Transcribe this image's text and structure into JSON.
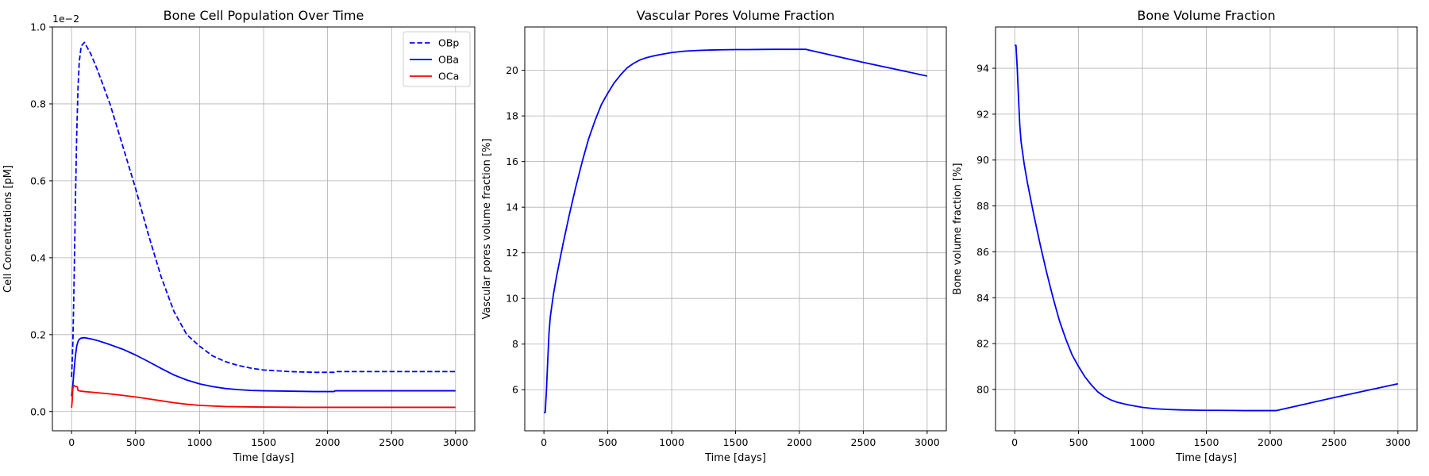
{
  "chart_data": [
    {
      "type": "line",
      "title": "Bone Cell Population Over Time",
      "xlabel": "Time [days]",
      "ylabel": "Cell Concentrations [pM]",
      "offset_label": "1e−2",
      "xlim": [
        -150,
        3150
      ],
      "ylim": [
        -0.05,
        1.0
      ],
      "xticks": [
        0,
        500,
        1000,
        1500,
        2000,
        2500,
        3000
      ],
      "yticks": [
        0.0,
        0.2,
        0.4,
        0.6,
        0.8,
        1.0
      ],
      "ytick_labels": [
        "0.0",
        "0.2",
        "0.4",
        "0.6",
        "0.8",
        "1.0"
      ],
      "grid": true,
      "legend": "upper right",
      "series": [
        {
          "name": "OBp",
          "color": "#0000ff",
          "style": "dashed",
          "x": [
            0,
            10,
            20,
            30,
            40,
            50,
            60,
            75,
            100,
            150,
            200,
            300,
            400,
            500,
            600,
            700,
            800,
            900,
            1000,
            1100,
            1200,
            1300,
            1400,
            1500,
            1600,
            1700,
            1800,
            1900,
            2000,
            2050,
            2060,
            2500,
            3000
          ],
          "y": [
            0.09,
            0.18,
            0.35,
            0.55,
            0.72,
            0.84,
            0.91,
            0.95,
            0.96,
            0.93,
            0.89,
            0.8,
            0.69,
            0.58,
            0.46,
            0.35,
            0.26,
            0.2,
            0.17,
            0.145,
            0.13,
            0.12,
            0.113,
            0.108,
            0.106,
            0.104,
            0.103,
            0.102,
            0.102,
            0.102,
            0.104,
            0.104,
            0.104
          ]
        },
        {
          "name": "OBa",
          "color": "#0000ff",
          "style": "solid",
          "x": [
            0,
            10,
            20,
            30,
            40,
            50,
            60,
            75,
            100,
            150,
            200,
            300,
            400,
            500,
            600,
            700,
            800,
            900,
            1000,
            1100,
            1200,
            1300,
            1400,
            1500,
            1600,
            1700,
            1800,
            1900,
            2000,
            2050,
            2060,
            2500,
            3000
          ],
          "y": [
            0.04,
            0.07,
            0.11,
            0.145,
            0.17,
            0.182,
            0.188,
            0.191,
            0.192,
            0.189,
            0.185,
            0.174,
            0.162,
            0.147,
            0.13,
            0.112,
            0.095,
            0.082,
            0.072,
            0.065,
            0.06,
            0.057,
            0.055,
            0.054,
            0.0535,
            0.053,
            0.0525,
            0.052,
            0.052,
            0.052,
            0.054,
            0.054,
            0.054
          ]
        },
        {
          "name": "OCa",
          "color": "#ff0000",
          "style": "solid",
          "x": [
            0,
            5,
            10,
            15,
            20,
            25,
            30,
            35,
            40,
            45,
            50,
            60,
            75,
            100,
            200,
            300,
            400,
            500,
            600,
            700,
            800,
            900,
            1000,
            1200,
            1400,
            1600,
            1800,
            2000,
            2500,
            3000
          ],
          "y": [
            0.01,
            0.03,
            0.06,
            0.068,
            0.068,
            0.066,
            0.065,
            0.065,
            0.065,
            0.064,
            0.055,
            0.054,
            0.053,
            0.052,
            0.049,
            0.046,
            0.042,
            0.038,
            0.033,
            0.028,
            0.023,
            0.019,
            0.016,
            0.013,
            0.012,
            0.0115,
            0.011,
            0.011,
            0.011,
            0.011
          ]
        }
      ]
    },
    {
      "type": "line",
      "title": "Vascular Pores Volume Fraction",
      "xlabel": "Time [days]",
      "ylabel": "Vascular pores volume fraction [%]",
      "xlim": [
        -150,
        3150
      ],
      "ylim": [
        4.2,
        21.9
      ],
      "xticks": [
        0,
        500,
        1000,
        1500,
        2000,
        2500,
        3000
      ],
      "yticks": [
        6,
        8,
        10,
        12,
        14,
        16,
        18,
        20
      ],
      "ytick_labels": [
        "6",
        "8",
        "10",
        "12",
        "14",
        "16",
        "18",
        "20"
      ],
      "grid": true,
      "series": [
        {
          "color": "#0000ff",
          "style": "solid",
          "x": [
            0,
            10,
            20,
            30,
            40,
            50,
            75,
            100,
            150,
            200,
            250,
            300,
            350,
            400,
            450,
            500,
            550,
            600,
            650,
            700,
            750,
            800,
            850,
            900,
            1000,
            1100,
            1200,
            1300,
            1400,
            1500,
            1600,
            1700,
            1800,
            1900,
            2000,
            2050,
            2500,
            3000
          ],
          "y": [
            5.0,
            5.0,
            6.0,
            7.3,
            8.5,
            9.2,
            10.2,
            11.0,
            12.4,
            13.7,
            14.9,
            16.0,
            17.0,
            17.8,
            18.5,
            19.0,
            19.45,
            19.8,
            20.1,
            20.3,
            20.45,
            20.55,
            20.62,
            20.68,
            20.78,
            20.84,
            20.87,
            20.89,
            20.9,
            20.91,
            20.91,
            20.915,
            20.92,
            20.92,
            20.92,
            20.92,
            20.35,
            19.75
          ]
        }
      ]
    },
    {
      "type": "line",
      "title": "Bone Volume Fraction",
      "xlabel": "Time [days]",
      "ylabel": "Bone volume fraction [%]",
      "xlim": [
        -150,
        3150
      ],
      "ylim": [
        78.2,
        95.8
      ],
      "xticks": [
        0,
        500,
        1000,
        1500,
        2000,
        2500,
        3000
      ],
      "yticks": [
        80,
        82,
        84,
        86,
        88,
        90,
        92,
        94
      ],
      "ytick_labels": [
        "80",
        "82",
        "84",
        "86",
        "88",
        "90",
        "92",
        "94"
      ],
      "grid": true,
      "series": [
        {
          "color": "#0000ff",
          "style": "solid",
          "x": [
            0,
            10,
            20,
            30,
            40,
            50,
            75,
            100,
            150,
            200,
            250,
            300,
            350,
            400,
            450,
            500,
            550,
            600,
            650,
            700,
            750,
            800,
            850,
            900,
            1000,
            1100,
            1200,
            1300,
            1400,
            1500,
            1600,
            1700,
            1800,
            1900,
            2000,
            2050,
            2500,
            3000
          ],
          "y": [
            95.0,
            95.0,
            94.0,
            92.7,
            91.5,
            90.8,
            89.8,
            89.0,
            87.6,
            86.3,
            85.1,
            84.0,
            83.0,
            82.2,
            81.5,
            81.0,
            80.55,
            80.2,
            79.9,
            79.7,
            79.55,
            79.45,
            79.38,
            79.32,
            79.22,
            79.16,
            79.13,
            79.11,
            79.1,
            79.09,
            79.09,
            79.085,
            79.08,
            79.08,
            79.08,
            79.08,
            79.65,
            80.25
          ]
        }
      ]
    }
  ]
}
